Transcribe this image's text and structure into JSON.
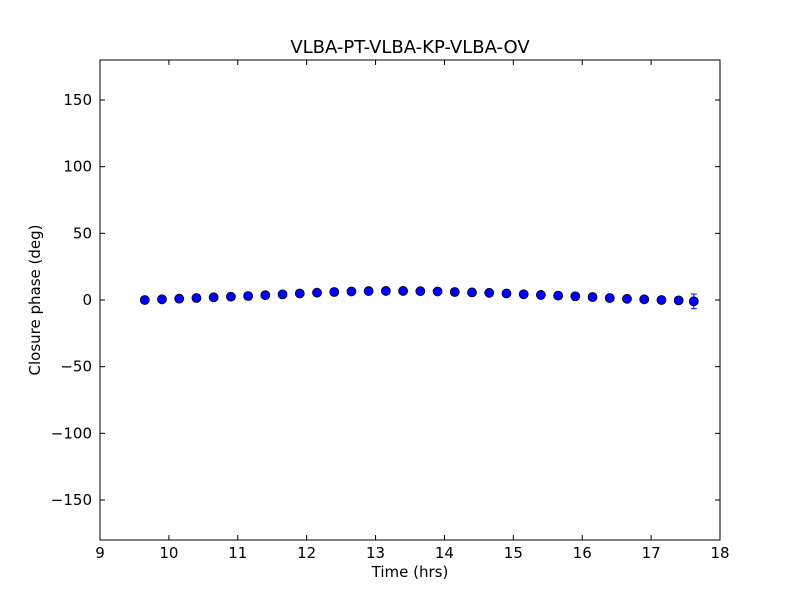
{
  "chart_data": {
    "type": "scatter",
    "title": "VLBA-PT-VLBA-KP-VLBA-OV",
    "xlabel": "Time (hrs)",
    "ylabel": "Closure phase (deg)",
    "xlim": [
      9,
      18
    ],
    "ylim": [
      -180,
      180
    ],
    "xticks": [
      9,
      10,
      11,
      12,
      13,
      14,
      15,
      16,
      17,
      18
    ],
    "yticks": [
      -150,
      -100,
      -50,
      0,
      50,
      100,
      150
    ],
    "xtick_labels": [
      "9",
      "10",
      "11",
      "12",
      "13",
      "14",
      "15",
      "16",
      "17",
      "18"
    ],
    "ytick_labels": [
      "−150",
      "−100",
      "−50",
      "0",
      "50",
      "100",
      "150"
    ],
    "grid": false,
    "marker_color": "#0000ff",
    "points": [
      {
        "x": 9.65,
        "y": 0.0,
        "err": 0.8
      },
      {
        "x": 9.9,
        "y": 0.5,
        "err": 0.8
      },
      {
        "x": 10.15,
        "y": 1.0,
        "err": 0.8
      },
      {
        "x": 10.4,
        "y": 1.5,
        "err": 0.8
      },
      {
        "x": 10.65,
        "y": 2.0,
        "err": 0.8
      },
      {
        "x": 10.9,
        "y": 2.5,
        "err": 0.8
      },
      {
        "x": 11.15,
        "y": 3.0,
        "err": 0.8
      },
      {
        "x": 11.4,
        "y": 3.6,
        "err": 0.8
      },
      {
        "x": 11.65,
        "y": 4.2,
        "err": 0.8
      },
      {
        "x": 11.9,
        "y": 4.9,
        "err": 0.8
      },
      {
        "x": 12.15,
        "y": 5.5,
        "err": 0.8
      },
      {
        "x": 12.4,
        "y": 6.0,
        "err": 0.8
      },
      {
        "x": 12.65,
        "y": 6.4,
        "err": 0.8
      },
      {
        "x": 12.9,
        "y": 6.7,
        "err": 0.8
      },
      {
        "x": 13.15,
        "y": 6.8,
        "err": 0.8
      },
      {
        "x": 13.4,
        "y": 6.8,
        "err": 0.8
      },
      {
        "x": 13.65,
        "y": 6.6,
        "err": 0.8
      },
      {
        "x": 13.9,
        "y": 6.4,
        "err": 0.8
      },
      {
        "x": 14.15,
        "y": 6.0,
        "err": 0.8
      },
      {
        "x": 14.4,
        "y": 5.7,
        "err": 0.8
      },
      {
        "x": 14.65,
        "y": 5.4,
        "err": 0.8
      },
      {
        "x": 14.9,
        "y": 4.9,
        "err": 0.8
      },
      {
        "x": 15.15,
        "y": 4.3,
        "err": 0.8
      },
      {
        "x": 15.4,
        "y": 3.8,
        "err": 0.8
      },
      {
        "x": 15.65,
        "y": 3.3,
        "err": 0.8
      },
      {
        "x": 15.9,
        "y": 2.8,
        "err": 0.8
      },
      {
        "x": 16.15,
        "y": 2.2,
        "err": 0.8
      },
      {
        "x": 16.4,
        "y": 1.5,
        "err": 0.8
      },
      {
        "x": 16.65,
        "y": 0.9,
        "err": 0.8
      },
      {
        "x": 16.9,
        "y": 0.5,
        "err": 0.8
      },
      {
        "x": 17.15,
        "y": 0.0,
        "err": 0.8
      },
      {
        "x": 17.4,
        "y": -0.3,
        "err": 0.8
      },
      {
        "x": 17.62,
        "y": -1.0,
        "err": 5.5
      }
    ]
  }
}
